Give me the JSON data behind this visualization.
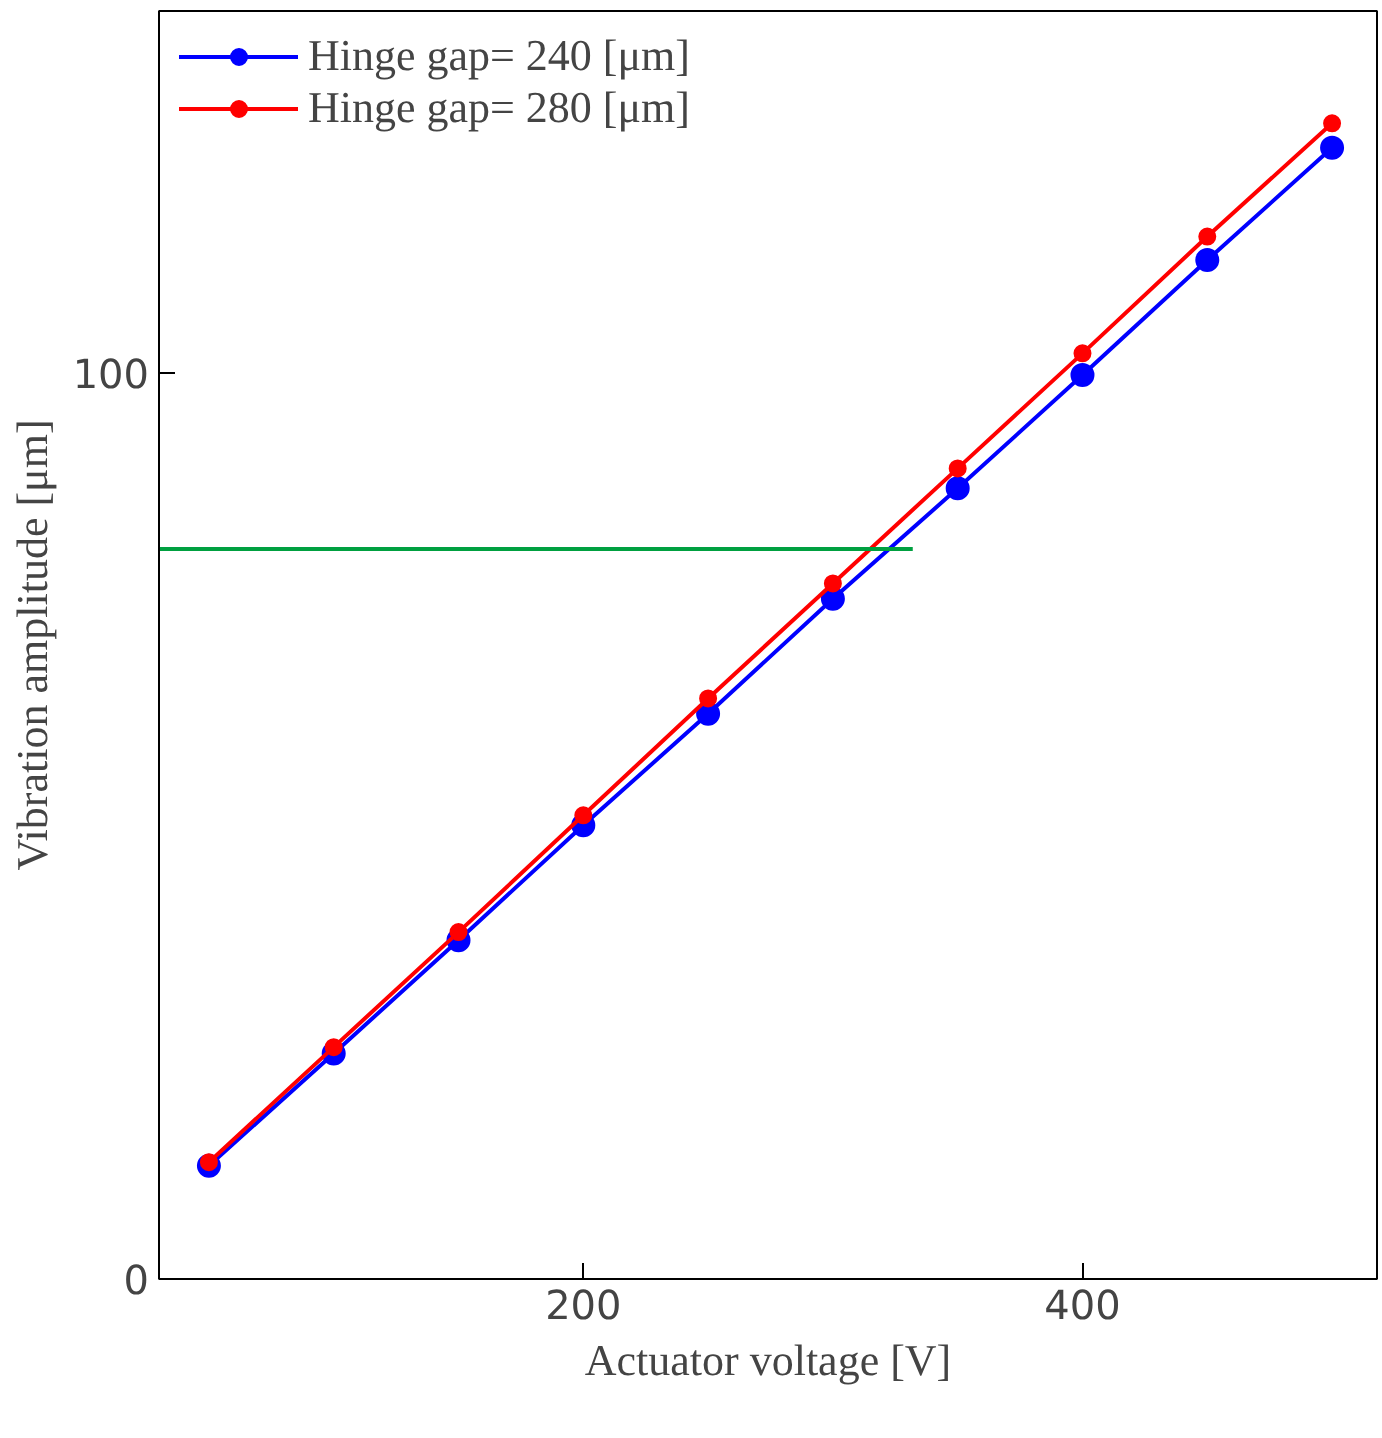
{
  "chart_data": {
    "type": "line",
    "xlabel": "Actuator voltage [V]",
    "ylabel": "Vibration amplitude [μm]",
    "x": [
      50,
      100,
      150,
      200,
      250,
      300,
      350,
      400,
      450,
      500
    ],
    "xlim": [
      30,
      518
    ],
    "ylim": [
      0,
      140
    ],
    "xticks": [
      200,
      400
    ],
    "yticks": [
      0,
      100
    ],
    "series": [
      {
        "name": "Hinge gap= 240 [μm]",
        "color": "#0000ff",
        "values": [
          12.5,
          24.9,
          37.4,
          50.1,
          62.4,
          75.1,
          87.3,
          99.8,
          112.5,
          124.9
        ]
      },
      {
        "name": "Hinge gap= 280 [μm]",
        "color": "#ff0000",
        "values": [
          12.9,
          25.6,
          38.3,
          51.2,
          64.1,
          76.8,
          89.5,
          102.2,
          115.1,
          127.6
        ]
      },
      {
        "color": "#00a040",
        "x": [
          30,
          332
        ],
        "values": [
          80.6,
          80.6
        ],
        "marker": "none"
      }
    ],
    "marker": "circle",
    "line_style": "solid",
    "legend": "top left",
    "grid": false
  }
}
